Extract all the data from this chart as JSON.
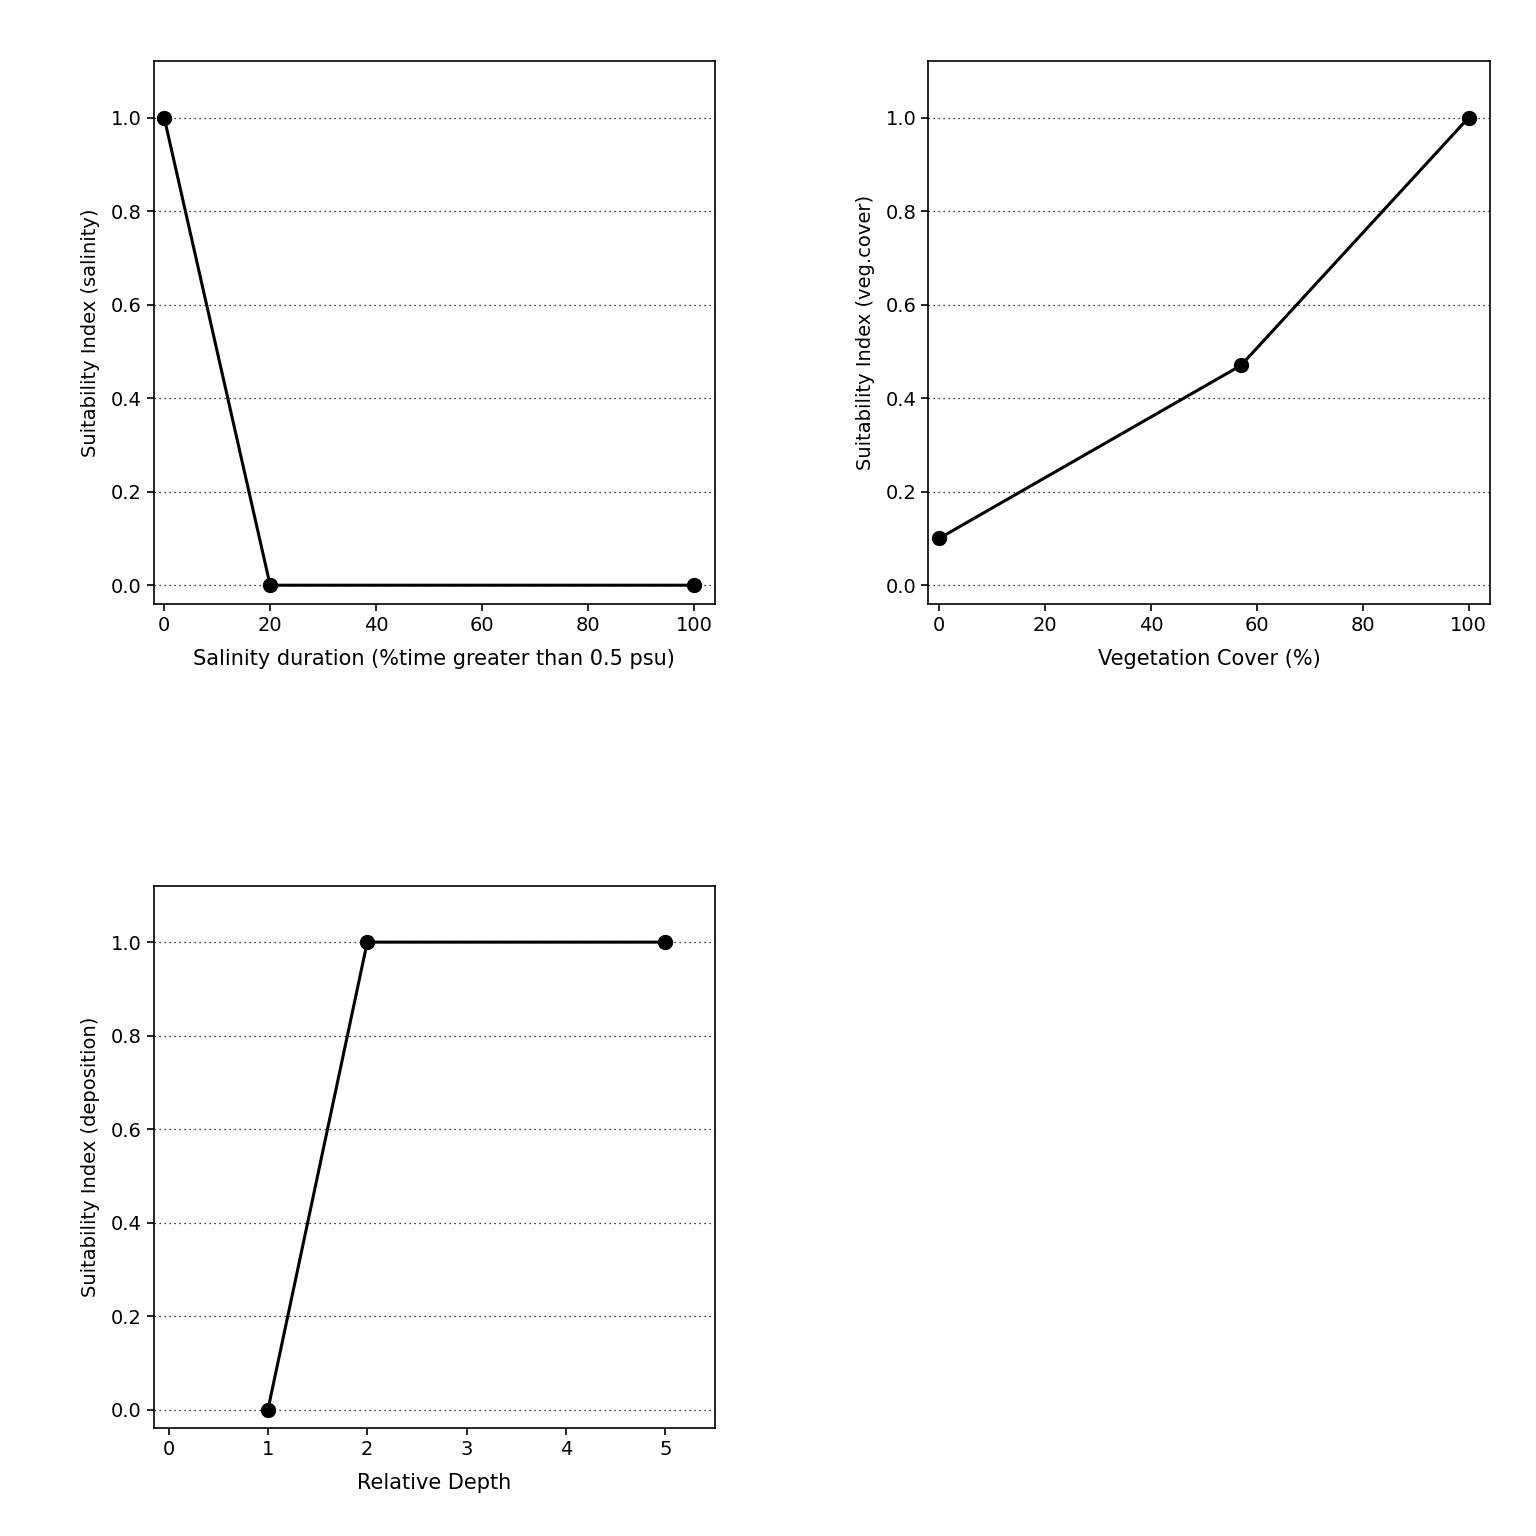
{
  "plot1": {
    "x": [
      0,
      20,
      100
    ],
    "y": [
      1.0,
      0.0,
      0.0
    ],
    "xlabel": "Salinity duration (%time greater than 0.5 psu)",
    "ylabel": "Suitability Index (salinity)",
    "xlim": [
      -2,
      104
    ],
    "ylim": [
      -0.04,
      1.12
    ],
    "xticks": [
      0,
      20,
      40,
      60,
      80,
      100
    ],
    "yticks": [
      0.0,
      0.2,
      0.4,
      0.6,
      0.8,
      1.0
    ]
  },
  "plot2": {
    "x": [
      0,
      57,
      100
    ],
    "y": [
      0.1,
      0.47,
      1.0
    ],
    "xlabel": "Vegetation Cover (%)",
    "ylabel": "Suitability Index (veg.cover)",
    "xlim": [
      -2,
      104
    ],
    "ylim": [
      -0.04,
      1.12
    ],
    "xticks": [
      0,
      20,
      40,
      60,
      80,
      100
    ],
    "yticks": [
      0.0,
      0.2,
      0.4,
      0.6,
      0.8,
      1.0
    ]
  },
  "plot3": {
    "x": [
      1,
      2,
      5
    ],
    "y": [
      0.0,
      1.0,
      1.0
    ],
    "xlabel": "Relative Depth",
    "ylabel": "Suitability Index (deposition)",
    "xlim": [
      -0.15,
      5.5
    ],
    "ylim": [
      -0.04,
      1.12
    ],
    "xticks": [
      0,
      1,
      2,
      3,
      4,
      5
    ],
    "yticks": [
      0.0,
      0.2,
      0.4,
      0.6,
      0.8,
      1.0
    ]
  },
  "line_color": "#000000",
  "marker_color": "#000000",
  "marker_size": 10,
  "line_width": 2.2,
  "background_color": "#ffffff",
  "tick_fontsize": 14,
  "xlabel_fontsize": 15,
  "ylabel_fontsize": 14
}
